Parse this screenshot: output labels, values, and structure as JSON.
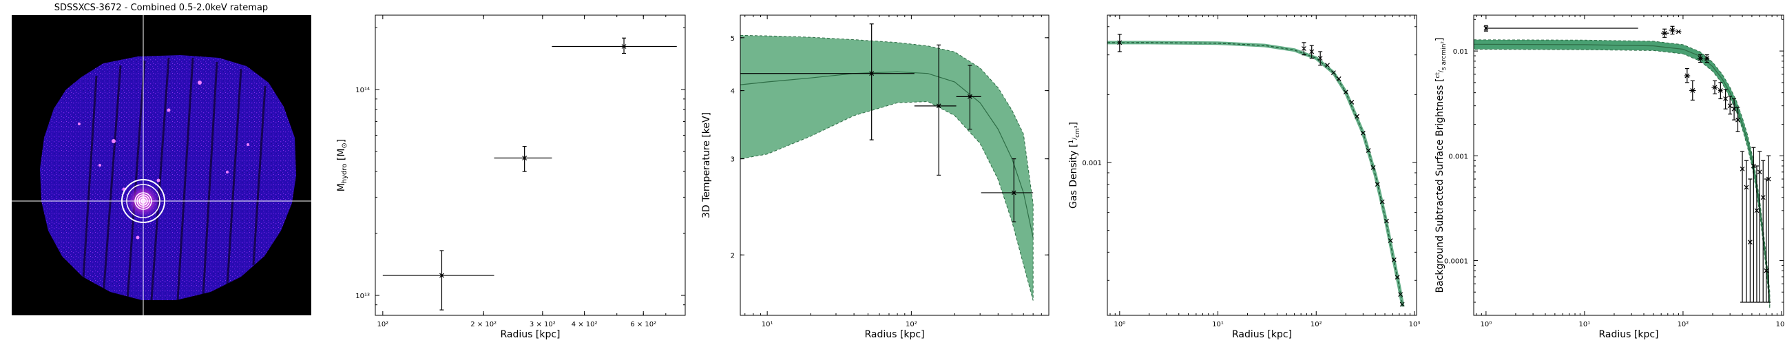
{
  "image_panel": {
    "title": "SDSSXCS-3672 - Combined 0.5-2.0keV ratemap"
  },
  "chart_data": [
    {
      "type": "scatter",
      "xlabel": "Radius [kpc]",
      "ylabel_parts": [
        "M",
        "hydro",
        " [M",
        "⊙",
        "]"
      ],
      "xscale": "log",
      "yscale": "log",
      "xlim": [
        95,
        800
      ],
      "ylim": [
        8000000000000.0,
        230000000000000.0
      ],
      "xticks": [
        {
          "v": 100,
          "t": "10²"
        },
        {
          "v": 200,
          "t": "2 × 10²"
        },
        {
          "v": 300,
          "t": "3 × 10²"
        },
        {
          "v": 400,
          "t": "4 × 10²"
        },
        {
          "v": 600,
          "t": "6 × 10²"
        }
      ],
      "yticks": [
        {
          "v": 10000000000000.0,
          "t": "10¹³"
        },
        {
          "v": 100000000000000.0,
          "t": "10¹⁴"
        }
      ],
      "series": [
        {
          "points": [
            {
              "x": 150,
              "y": 12500000000000.0,
              "xerr": [
                100,
                215
              ],
              "yerr": [
                8500000000000.0,
                16500000000000.0
              ]
            },
            {
              "x": 265,
              "y": 46500000000000.0,
              "xerr": [
                215,
                320
              ],
              "yerr": [
                40000000000000.0,
                53000000000000.0
              ]
            },
            {
              "x": 525,
              "y": 162000000000000.0,
              "xerr": [
                320,
                755
              ],
              "yerr": [
                150000000000000.0,
                178000000000000.0
              ]
            }
          ]
        }
      ]
    },
    {
      "type": "line",
      "xlabel": "Radius [kpc]",
      "ylabel": "3D Temperature [keV]",
      "xscale": "log",
      "yscale": "log",
      "xlim": [
        6.5,
        900
      ],
      "ylim": [
        1.55,
        5.5
      ],
      "xticks": [
        {
          "v": 10,
          "t": "10¹"
        },
        {
          "v": 100,
          "t": "10²"
        }
      ],
      "yticks": [
        {
          "v": 2,
          "t": "2"
        },
        {
          "v": 3,
          "t": "3"
        },
        {
          "v": 4,
          "t": "4"
        },
        {
          "v": 5,
          "t": "5"
        }
      ],
      "band": {
        "color": "#6ab187",
        "x": [
          6.5,
          10,
          20,
          40,
          80,
          130,
          200,
          300,
          400,
          500,
          600,
          700
        ],
        "upper": [
          5.05,
          5.04,
          5.01,
          4.96,
          4.9,
          4.83,
          4.71,
          4.4,
          4.05,
          3.68,
          3.33,
          2.48
        ],
        "lower": [
          3.0,
          3.06,
          3.3,
          3.6,
          3.8,
          3.82,
          3.6,
          3.2,
          2.75,
          2.3,
          1.92,
          1.65
        ],
        "median": [
          4.1,
          4.15,
          4.22,
          4.3,
          4.33,
          4.3,
          4.15,
          3.8,
          3.4,
          3.0,
          2.6,
          2.15
        ]
      },
      "points": [
        {
          "x": 53,
          "y": 4.3,
          "xerr": [
            6.5,
            105
          ],
          "yerr": [
            3.25,
            5.3
          ]
        },
        {
          "x": 155,
          "y": 3.75,
          "xerr": [
            105,
            205
          ],
          "yerr": [
            2.8,
            4.85
          ]
        },
        {
          "x": 255,
          "y": 3.9,
          "xerr": [
            205,
            305
          ],
          "yerr": [
            3.4,
            4.45
          ]
        },
        {
          "x": 515,
          "y": 2.6,
          "xerr": [
            305,
            700
          ],
          "yerr": [
            2.3,
            3.0
          ]
        }
      ]
    },
    {
      "type": "line",
      "xlabel": "Radius [kpc]",
      "ylabel": "Gas Density",
      "ylabel_unit": [
        "1",
        "cm³"
      ],
      "xscale": "log",
      "yscale": "log",
      "xlim": [
        0.75,
        1050
      ],
      "ylim": [
        0.00021,
        0.0045
      ],
      "xticks": [
        {
          "v": 1,
          "t": "10⁰"
        },
        {
          "v": 10,
          "t": "10¹"
        },
        {
          "v": 100,
          "t": "10²"
        },
        {
          "v": 1000,
          "t": "10³"
        }
      ],
      "yticks": [
        {
          "v": 0.001,
          "t": "0.001"
        }
      ],
      "model": {
        "color": "#3f9b6a",
        "x": [
          0.75,
          2,
          10,
          30,
          60,
          100,
          150,
          200,
          300,
          400,
          500,
          600,
          700,
          760
        ],
        "y": [
          0.0034,
          0.0034,
          0.00338,
          0.0033,
          0.00315,
          0.0029,
          0.0025,
          0.00205,
          0.00135,
          0.00088,
          0.00058,
          0.00039,
          0.00028,
          0.00023
        ]
      },
      "points": [
        {
          "x": 1.0,
          "y": 0.0034,
          "xerr": [
            0.97,
            1.03
          ],
          "yerr": [
            0.0031,
            0.0037
          ]
        },
        {
          "x": 75,
          "y": 0.0032,
          "yerr": [
            0.003,
            0.0034
          ]
        },
        {
          "x": 90,
          "y": 0.0031,
          "yerr": [
            0.0029,
            0.0033
          ]
        },
        {
          "x": 110,
          "y": 0.0029,
          "yerr": [
            0.0027,
            0.0031
          ]
        },
        {
          "x": 130,
          "y": 0.0027
        },
        {
          "x": 150,
          "y": 0.0025
        },
        {
          "x": 170,
          "y": 0.00235
        },
        {
          "x": 200,
          "y": 0.00205
        },
        {
          "x": 230,
          "y": 0.00185
        },
        {
          "x": 260,
          "y": 0.0016
        },
        {
          "x": 300,
          "y": 0.00135
        },
        {
          "x": 340,
          "y": 0.00113
        },
        {
          "x": 380,
          "y": 0.00095
        },
        {
          "x": 420,
          "y": 0.0008
        },
        {
          "x": 470,
          "y": 0.00067
        },
        {
          "x": 520,
          "y": 0.00055
        },
        {
          "x": 570,
          "y": 0.00045
        },
        {
          "x": 620,
          "y": 0.00037
        },
        {
          "x": 670,
          "y": 0.00031
        },
        {
          "x": 720,
          "y": 0.00026
        },
        {
          "x": 750,
          "y": 0.000235
        }
      ]
    },
    {
      "type": "line",
      "xlabel": "Radius [kpc]",
      "ylabel": "Background Subtracted Surface Brightness",
      "ylabel_unit": [
        "ct",
        "s arcmin²"
      ],
      "xscale": "log",
      "yscale": "log",
      "xlim": [
        0.75,
        1050
      ],
      "ylim": [
        3e-05,
        0.022
      ],
      "xticks": [
        {
          "v": 1,
          "t": "10⁰"
        },
        {
          "v": 10,
          "t": "10¹"
        },
        {
          "v": 100,
          "t": "10²"
        },
        {
          "v": 1000,
          "t": "10³"
        }
      ],
      "yticks": [
        {
          "v": 0.0001,
          "t": "0.0001"
        },
        {
          "v": 0.001,
          "t": "0.001"
        },
        {
          "v": 0.01,
          "t": "0.01"
        }
      ],
      "band": {
        "color": "#3f9b6a",
        "x": [
          0.75,
          10,
          50,
          100,
          150,
          200,
          250,
          300,
          350,
          400,
          450,
          500,
          550,
          600,
          650,
          700,
          760
        ],
        "upper": [
          0.0128,
          0.0127,
          0.0124,
          0.0115,
          0.0098,
          0.0078,
          0.006,
          0.0045,
          0.0033,
          0.0023,
          0.0016,
          0.00105,
          0.00065,
          0.00038,
          0.0002,
          0.00011,
          5e-05
        ],
        "lower": [
          0.0104,
          0.0103,
          0.0101,
          0.0094,
          0.008,
          0.0064,
          0.0049,
          0.0036,
          0.0026,
          0.0018,
          0.00122,
          0.0008,
          0.00049,
          0.00028,
          0.00015,
          8e-05,
          3.5e-05
        ],
        "median": [
          0.0116,
          0.0115,
          0.0112,
          0.0104,
          0.0089,
          0.0071,
          0.0054,
          0.004,
          0.0029,
          0.002,
          0.0014,
          0.00092,
          0.00057,
          0.00033,
          0.00017,
          9.5e-05,
          4.2e-05
        ]
      },
      "points": [
        {
          "x": 1.0,
          "y": 0.0165,
          "xerr": [
            0.97,
            35
          ],
          "yerr": [
            0.0155,
            0.0175
          ]
        },
        {
          "x": 65,
          "y": 0.0148,
          "xerr": [
            60,
            72
          ],
          "yerr": [
            0.0135,
            0.0162
          ]
        },
        {
          "x": 78,
          "y": 0.0158,
          "xerr": [
            72,
            84
          ],
          "yerr": [
            0.0145,
            0.0172
          ]
        },
        {
          "x": 90,
          "y": 0.0153,
          "xerr": [
            84,
            96
          ]
        },
        {
          "x": 110,
          "y": 0.0058,
          "xerr": [
            103,
            118
          ],
          "yerr": [
            0.005,
            0.0068
          ]
        },
        {
          "x": 125,
          "y": 0.0042,
          "xerr": [
            116,
            135
          ],
          "yerr": [
            0.0034,
            0.0052
          ]
        },
        {
          "x": 150,
          "y": 0.0085,
          "xerr": [
            140,
            160
          ],
          "yerr": [
            0.0078,
            0.0092
          ]
        },
        {
          "x": 175,
          "y": 0.0085,
          "xerr": [
            165,
            185
          ],
          "yerr": [
            0.0078,
            0.0092
          ]
        },
        {
          "x": 210,
          "y": 0.0045,
          "xerr": [
            195,
            225
          ],
          "yerr": [
            0.0039,
            0.0052
          ]
        },
        {
          "x": 240,
          "y": 0.0042,
          "xerr": [
            228,
            252
          ],
          "yerr": [
            0.0035,
            0.005
          ]
        },
        {
          "x": 270,
          "y": 0.0035,
          "yerr": [
            0.0028,
            0.0043
          ]
        },
        {
          "x": 300,
          "y": 0.003,
          "yerr": [
            0.0025,
            0.0037
          ]
        },
        {
          "x": 330,
          "y": 0.0028,
          "yerr": [
            0.0022,
            0.0035
          ]
        },
        {
          "x": 360,
          "y": 0.0022,
          "yerr": [
            0.0017,
            0.0029
          ]
        },
        {
          "x": 400,
          "y": 0.00075,
          "yerr": [
            4e-05,
            0.0011
          ]
        },
        {
          "x": 440,
          "y": 0.0005,
          "yerr": [
            4e-05,
            0.0009
          ]
        },
        {
          "x": 480,
          "y": 0.00015,
          "yerr": [
            4e-05,
            0.0006
          ]
        },
        {
          "x": 520,
          "y": 0.0008,
          "yerr": [
            4e-05,
            0.0012
          ]
        },
        {
          "x": 560,
          "y": 0.0003,
          "yerr": [
            4e-05,
            0.0008
          ]
        },
        {
          "x": 600,
          "y": 0.0007,
          "yerr": [
            4e-05,
            0.0011
          ]
        },
        {
          "x": 650,
          "y": 0.0004,
          "yerr": [
            4e-05,
            0.0009
          ]
        },
        {
          "x": 700,
          "y": 8e-05,
          "yerr": [
            4e-05,
            0.0006
          ]
        },
        {
          "x": 740,
          "y": 0.0006,
          "yerr": [
            4e-05,
            0.001
          ]
        }
      ]
    }
  ]
}
